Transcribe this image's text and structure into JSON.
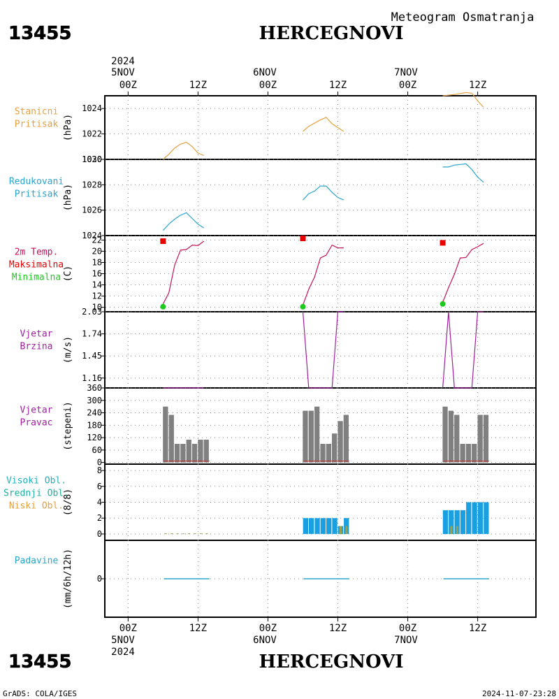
{
  "header": {
    "station_id": "13455",
    "station_name": "HERCEGNOVI",
    "product_title": "Meteogram Osmatranja"
  },
  "footer": {
    "credit": "GrADS: COLA/IGES",
    "timestamp": "2024-11-07-23:28"
  },
  "time_axis": {
    "year": "2024",
    "top_dates": [
      "5NOV",
      "6NOV",
      "7NOV"
    ],
    "tick_labels": [
      "00Z",
      "12Z",
      "00Z",
      "12Z",
      "00Z",
      "12Z"
    ],
    "tick_hours": [
      0,
      12,
      24,
      36,
      48,
      60
    ],
    "range_hours": [
      -4,
      70
    ]
  },
  "colors": {
    "orange": "#e5a040",
    "cyan": "#2aa5cf",
    "crimson": "#c4145a",
    "red": "#e60000",
    "green": "#1ec81e",
    "purple": "#a01ea0",
    "gray": "#808080",
    "blue_bar": "#1a9fe0",
    "mid_bar": "#9aa050",
    "low_bar": "#e6a040"
  },
  "panels": {
    "station_pressure": {
      "labels": [
        "Stanicni",
        "Pritisak"
      ],
      "unit": "(hPa)",
      "color_key": "orange"
    },
    "reduced_pressure": {
      "labels": [
        "Redukovani",
        "Pritisak"
      ],
      "unit": "(hPa)",
      "color_key": "cyan"
    },
    "temperature": {
      "labels": [
        "2m Temp.",
        "Maksimalna",
        "Minimalna"
      ],
      "unit": "(C)"
    },
    "wind_speed": {
      "labels": [
        "Vjetar",
        "Brzina"
      ],
      "unit": "(m/s)",
      "color_key": "purple"
    },
    "wind_direction": {
      "labels": [
        "Vjetar",
        "Pravac"
      ],
      "unit": "(stepeni)",
      "color_key": "purple"
    },
    "clouds": {
      "labels": [
        "Visoki Obl.",
        "Srednji Obl.",
        "Niski Obl."
      ],
      "unit": "(8/8)"
    },
    "precip": {
      "labels": [
        "Padavine"
      ],
      "unit": "(mm/6h/12h)",
      "color_key": "cyan"
    }
  },
  "chart_data": [
    {
      "type": "line",
      "name": "station_pressure",
      "ylim": [
        1020,
        1025
      ],
      "yticks": [
        1020,
        1022,
        1024
      ],
      "series": [
        {
          "segments": [
            [
              [
                6,
                1020.0
              ],
              [
                7,
                1020.4
              ],
              [
                8,
                1020.9
              ],
              [
                9,
                1021.2
              ],
              [
                10,
                1021.35
              ],
              [
                11,
                1021.0
              ],
              [
                12,
                1020.5
              ],
              [
                13,
                1020.3
              ]
            ],
            [
              [
                30,
                1022.2
              ],
              [
                31,
                1022.6
              ],
              [
                33,
                1023.1
              ],
              [
                34,
                1023.3
              ],
              [
                35,
                1022.8
              ],
              [
                36,
                1022.5
              ],
              [
                37,
                1022.2
              ]
            ],
            [
              [
                54,
                1025.0
              ],
              [
                56,
                1025.1
              ],
              [
                58,
                1025.25
              ],
              [
                59,
                1025.2
              ],
              [
                60,
                1024.6
              ],
              [
                61,
                1024.1
              ]
            ]
          ]
        }
      ]
    },
    {
      "type": "line",
      "name": "reduced_pressure",
      "ylim": [
        1024,
        1030
      ],
      "yticks": [
        1024,
        1026,
        1028,
        1030
      ],
      "series": [
        {
          "segments": [
            [
              [
                6,
                1024.4
              ],
              [
                7,
                1024.9
              ],
              [
                8,
                1025.3
              ],
              [
                9,
                1025.6
              ],
              [
                10,
                1025.8
              ],
              [
                11,
                1025.35
              ],
              [
                12,
                1024.9
              ],
              [
                13,
                1024.6
              ]
            ],
            [
              [
                30,
                1026.8
              ],
              [
                31,
                1027.3
              ],
              [
                32,
                1027.5
              ],
              [
                33,
                1027.9
              ],
              [
                34,
                1027.9
              ],
              [
                35,
                1027.4
              ],
              [
                36,
                1027.0
              ],
              [
                37,
                1026.8
              ]
            ],
            [
              [
                54,
                1029.4
              ],
              [
                55,
                1029.4
              ],
              [
                56,
                1029.55
              ],
              [
                58,
                1029.65
              ],
              [
                59,
                1029.2
              ],
              [
                60,
                1028.6
              ],
              [
                61,
                1028.2
              ]
            ]
          ]
        }
      ]
    },
    {
      "type": "line",
      "name": "temperature",
      "ylim": [
        9.2,
        22.8
      ],
      "yticks": [
        10,
        12,
        14,
        16,
        18,
        20,
        22
      ],
      "series": [
        {
          "color_key": "crimson",
          "segments": [
            [
              [
                6,
                10.6
              ],
              [
                7,
                12.6
              ],
              [
                8,
                17.6
              ],
              [
                9,
                20.2
              ],
              [
                10,
                20.3
              ],
              [
                11,
                21.1
              ],
              [
                12,
                21.0
              ],
              [
                13,
                21.8
              ]
            ],
            [
              [
                30,
                10.4
              ],
              [
                31,
                13.2
              ],
              [
                32,
                15.4
              ],
              [
                33,
                18.8
              ],
              [
                34,
                19.3
              ],
              [
                35,
                21.1
              ],
              [
                36,
                20.6
              ],
              [
                37,
                20.6
              ]
            ],
            [
              [
                54,
                10.9
              ],
              [
                55,
                13.5
              ],
              [
                56,
                15.9
              ],
              [
                57,
                18.8
              ],
              [
                58,
                18.9
              ],
              [
                59,
                20.3
              ],
              [
                60,
                20.8
              ],
              [
                61,
                21.4
              ]
            ]
          ]
        },
        {
          "name": "Maksimalna",
          "color_key": "red",
          "marker": "square",
          "points": [
            [
              6,
              21.8
            ],
            [
              30,
              22.3
            ],
            [
              54,
              21.5
            ]
          ]
        },
        {
          "name": "Minimalna",
          "color_key": "green",
          "marker": "circle",
          "points": [
            [
              6,
              10.1
            ],
            [
              30,
              10.1
            ],
            [
              54,
              10.6
            ]
          ]
        }
      ]
    },
    {
      "type": "line",
      "name": "wind_speed",
      "ylim": [
        1.03,
        2.03
      ],
      "yticks": [
        1.16,
        1.45,
        1.74,
        2.03
      ],
      "series": [
        {
          "segments": [
            [
              [
                6,
                1.03
              ],
              [
                13,
                1.03
              ]
            ],
            [
              [
                30,
                2.03
              ],
              [
                31,
                1.03
              ],
              [
                35,
                1.03
              ],
              [
                36,
                2.03
              ],
              [
                37,
                2.03
              ]
            ],
            [
              [
                54,
                1.03
              ],
              [
                55,
                2.03
              ],
              [
                56,
                1.03
              ],
              [
                59,
                1.03
              ],
              [
                60,
                2.03
              ],
              [
                61,
                2.03
              ]
            ]
          ]
        }
      ]
    },
    {
      "type": "bar",
      "name": "wind_direction",
      "ylim": [
        -8,
        360
      ],
      "yticks": [
        0,
        60,
        120,
        180,
        240,
        300,
        360
      ],
      "bars": [
        [
          6,
          270
        ],
        [
          7,
          230
        ],
        [
          8,
          90
        ],
        [
          9,
          90
        ],
        [
          10,
          110
        ],
        [
          11,
          90
        ],
        [
          12,
          110
        ],
        [
          13,
          110
        ],
        [
          30,
          250
        ],
        [
          31,
          250
        ],
        [
          32,
          270
        ],
        [
          33,
          90
        ],
        [
          34,
          90
        ],
        [
          35,
          140
        ],
        [
          36,
          200
        ],
        [
          37,
          230
        ],
        [
          54,
          270
        ],
        [
          55,
          250
        ],
        [
          56,
          230
        ],
        [
          57,
          90
        ],
        [
          58,
          90
        ],
        [
          59,
          90
        ],
        [
          60,
          230
        ],
        [
          61,
          230
        ]
      ]
    },
    {
      "type": "bar",
      "name": "clouds",
      "ylim": [
        -0.8,
        8.8
      ],
      "yticks": [
        0,
        2,
        4,
        6,
        8
      ],
      "series": [
        {
          "name": "Visoki Obl.",
          "color_key": "blue_bar",
          "bars": [
            [
              30,
              2
            ],
            [
              31,
              2
            ],
            [
              32,
              2
            ],
            [
              33,
              2
            ],
            [
              34,
              2
            ],
            [
              35,
              2
            ],
            [
              36,
              1
            ],
            [
              37,
              2
            ],
            [
              54,
              3
            ],
            [
              55,
              3
            ],
            [
              56,
              3
            ],
            [
              57,
              3
            ],
            [
              58,
              4
            ],
            [
              59,
              4
            ],
            [
              60,
              4
            ],
            [
              61,
              4
            ]
          ]
        },
        {
          "name": "Srednji Obl.",
          "color_key": "mid_bar",
          "bars": [
            [
              6,
              0.08
            ],
            [
              7,
              0.08
            ],
            [
              8,
              0.08
            ],
            [
              9,
              0.08
            ],
            [
              10,
              0.08
            ],
            [
              11,
              0.08
            ],
            [
              12,
              0.08
            ],
            [
              13,
              0.08
            ],
            [
              36,
              1
            ],
            [
              37,
              1
            ],
            [
              55,
              1
            ],
            [
              56,
              1
            ]
          ]
        },
        {
          "name": "Niski Obl.",
          "color_key": "low_bar",
          "bars": []
        }
      ]
    },
    {
      "type": "bar",
      "name": "precip",
      "ylim": [
        -5,
        5
      ],
      "yticks": [
        0
      ],
      "segments": [
        [
          [
            6,
            0
          ],
          [
            13,
            0
          ]
        ],
        [
          [
            30,
            0
          ],
          [
            37,
            0
          ]
        ],
        [
          [
            54,
            0
          ],
          [
            61,
            0
          ]
        ]
      ]
    }
  ]
}
